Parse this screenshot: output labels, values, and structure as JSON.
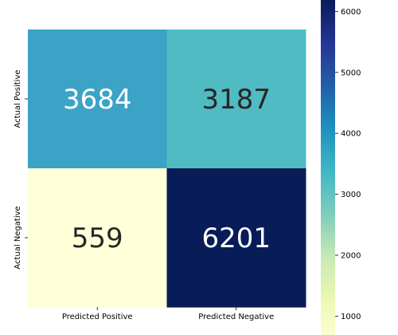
{
  "chart_data": {
    "type": "heatmap",
    "title": "",
    "xlabel": "",
    "ylabel": "",
    "x_categories": [
      "Predicted Positive",
      "Predicted Negative"
    ],
    "y_categories": [
      "Actual Positive",
      "Actual Negative"
    ],
    "values": [
      [
        3684,
        3187
      ],
      [
        559,
        6201
      ]
    ],
    "annotations": [
      [
        "3684",
        "3187"
      ],
      [
        "559",
        "6201"
      ]
    ],
    "colormap": "YlGnBu",
    "cell_colors": [
      [
        "#3ba3c6",
        "#50bbc2"
      ],
      [
        "#ffffd9",
        "#081d58"
      ]
    ],
    "annotation_colors": [
      [
        "#ffffff",
        "#262626"
      ],
      [
        "#262626",
        "#ffffff"
      ]
    ],
    "colorbar": {
      "range": [
        559,
        6201
      ],
      "ticks": [
        "1000",
        "2000",
        "3000",
        "4000",
        "5000",
        "6000"
      ],
      "tick_values": [
        1000,
        2000,
        3000,
        4000,
        5000,
        6000
      ],
      "gradient_stops": [
        "#ffffd9",
        "#edf8b1",
        "#c7e9b4",
        "#7fcdbb",
        "#41b6c4",
        "#1d91c0",
        "#225ea8",
        "#253494",
        "#081d58"
      ]
    },
    "grid": false,
    "legend": "colorbar-right"
  }
}
